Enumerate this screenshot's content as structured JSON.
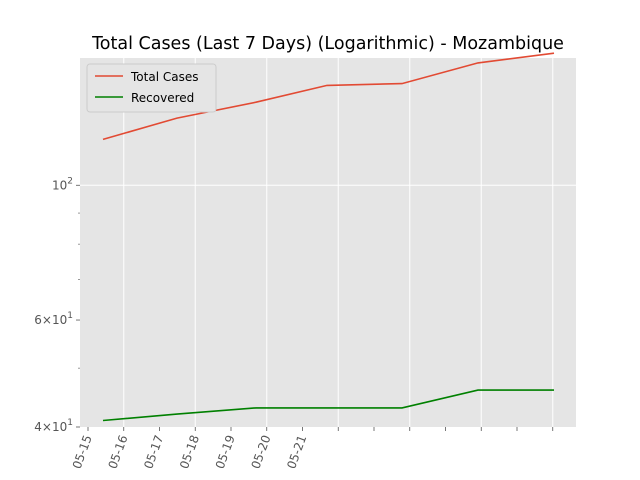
{
  "chart_data": {
    "type": "line",
    "title": "Total Cases (Last 7 Days) (Logarithmic) - Mozambique",
    "xlabel": "",
    "ylabel": "",
    "y_scale": "log",
    "ylim": [
      40,
      162
    ],
    "grid": true,
    "legend_position": "top-left",
    "x_tick_labels": [
      "05-15",
      "05-16",
      "05-17",
      "05-18",
      "05-19",
      "05-20",
      "05-21"
    ],
    "x": [
      "05-15",
      "05-16",
      "05-17",
      "05-18",
      "05-19",
      "05-20",
      "05-21"
    ],
    "y_ticks": [
      {
        "value": 100,
        "base": "10",
        "exp": "2"
      },
      {
        "value": 60,
        "coef": "6",
        "base": "10",
        "exp": "1"
      },
      {
        "value": 40,
        "coef": "4",
        "base": "10",
        "exp": "1"
      }
    ],
    "series": [
      {
        "name": "Total Cases",
        "color": "#e24a33",
        "values": [
          119,
          129,
          137,
          146,
          147,
          159,
          165
        ]
      },
      {
        "name": "Recovered",
        "color": "#008000",
        "values": [
          41,
          42,
          43,
          43,
          43,
          46,
          46
        ]
      }
    ]
  }
}
